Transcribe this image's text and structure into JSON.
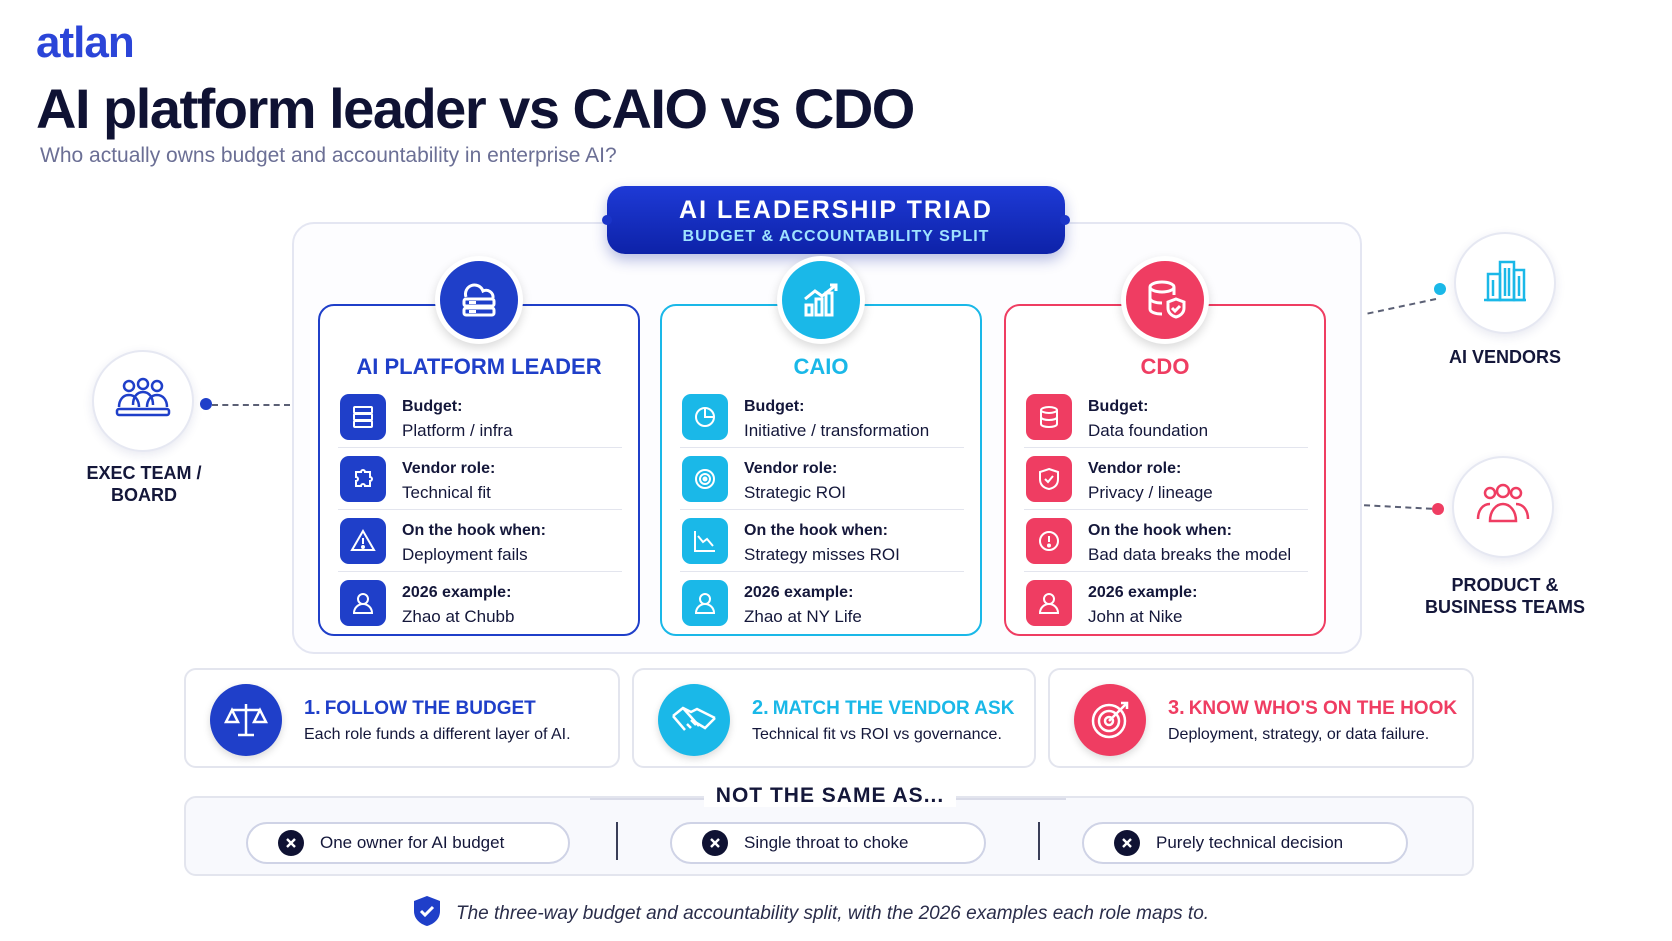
{
  "brand": "atlan",
  "title": "AI platform leader vs CAIO vs CDO",
  "subtitle": "Who actually owns budget and accountability in enterprise AI?",
  "triad": {
    "title": "AI LEADERSHIP TRIAD",
    "subtitle": "BUDGET & ACCOUNTABILITY SPLIT"
  },
  "cards": [
    {
      "title": "AI PLATFORM LEADER",
      "color": "#1f3fc9",
      "icon": "cloud-server-icon",
      "rows": [
        {
          "label": "Budget:",
          "value": "Platform / infra",
          "icon": "server-icon"
        },
        {
          "label": "Vendor role:",
          "value": "Technical fit",
          "icon": "puzzle-icon"
        },
        {
          "label": "On the hook when:",
          "value": "Deployment fails",
          "icon": "warning-icon"
        },
        {
          "label": "2026 example:",
          "value": "Zhao at Chubb",
          "icon": "user-icon"
        }
      ]
    },
    {
      "title": "CAIO",
      "color": "#1ab8e8",
      "icon": "growth-chart-icon",
      "rows": [
        {
          "label": "Budget:",
          "value": "Initiative / transformation",
          "icon": "pie-chart-icon"
        },
        {
          "label": "Vendor role:",
          "value": "Strategic ROI",
          "icon": "target-icon"
        },
        {
          "label": "On the hook when:",
          "value": "Strategy misses ROI",
          "icon": "decline-chart-icon"
        },
        {
          "label": "2026 example:",
          "value": "Zhao at NY Life",
          "icon": "user-icon"
        }
      ]
    },
    {
      "title": "CDO",
      "color": "#ef3d62",
      "icon": "database-shield-icon",
      "rows": [
        {
          "label": "Budget:",
          "value": "Data foundation",
          "icon": "database-icon"
        },
        {
          "label": "Vendor role:",
          "value": "Privacy / lineage",
          "icon": "shield-check-icon"
        },
        {
          "label": "On the hook when:",
          "value": "Bad data breaks the model",
          "icon": "alert-icon"
        },
        {
          "label": "2026 example:",
          "value": "John at Nike",
          "icon": "user-icon"
        }
      ]
    }
  ],
  "nodes": {
    "exec": {
      "label_line1": "EXEC TEAM /",
      "label_line2": "BOARD",
      "icon": "team-icon"
    },
    "vendors": {
      "label": "AI VENDORS",
      "icon": "building-icon"
    },
    "product": {
      "label_line1": "PRODUCT &",
      "label_line2": "BUSINESS TEAMS",
      "icon": "group-icon"
    }
  },
  "principles": [
    {
      "num": "1.",
      "title": "FOLLOW THE BUDGET",
      "desc": "Each role funds a different layer of AI.",
      "icon": "scales-icon",
      "color": "#1f3fc9"
    },
    {
      "num": "2.",
      "title": "MATCH THE VENDOR ASK",
      "desc": "Technical fit vs ROI vs governance.",
      "icon": "handshake-icon",
      "color": "#1ab8e8"
    },
    {
      "num": "3.",
      "title": "KNOW WHO'S ON THE HOOK",
      "desc": "Deployment, strategy, or data failure.",
      "icon": "target-icon",
      "color": "#ef3d62"
    }
  ],
  "not_same": {
    "heading": "NOT THE SAME AS...",
    "items": [
      "One owner for AI budget",
      "Single throat to choke",
      "Purely technical decision"
    ]
  },
  "footer": "The three-way budget and accountability split, with the 2026 examples each role maps to."
}
